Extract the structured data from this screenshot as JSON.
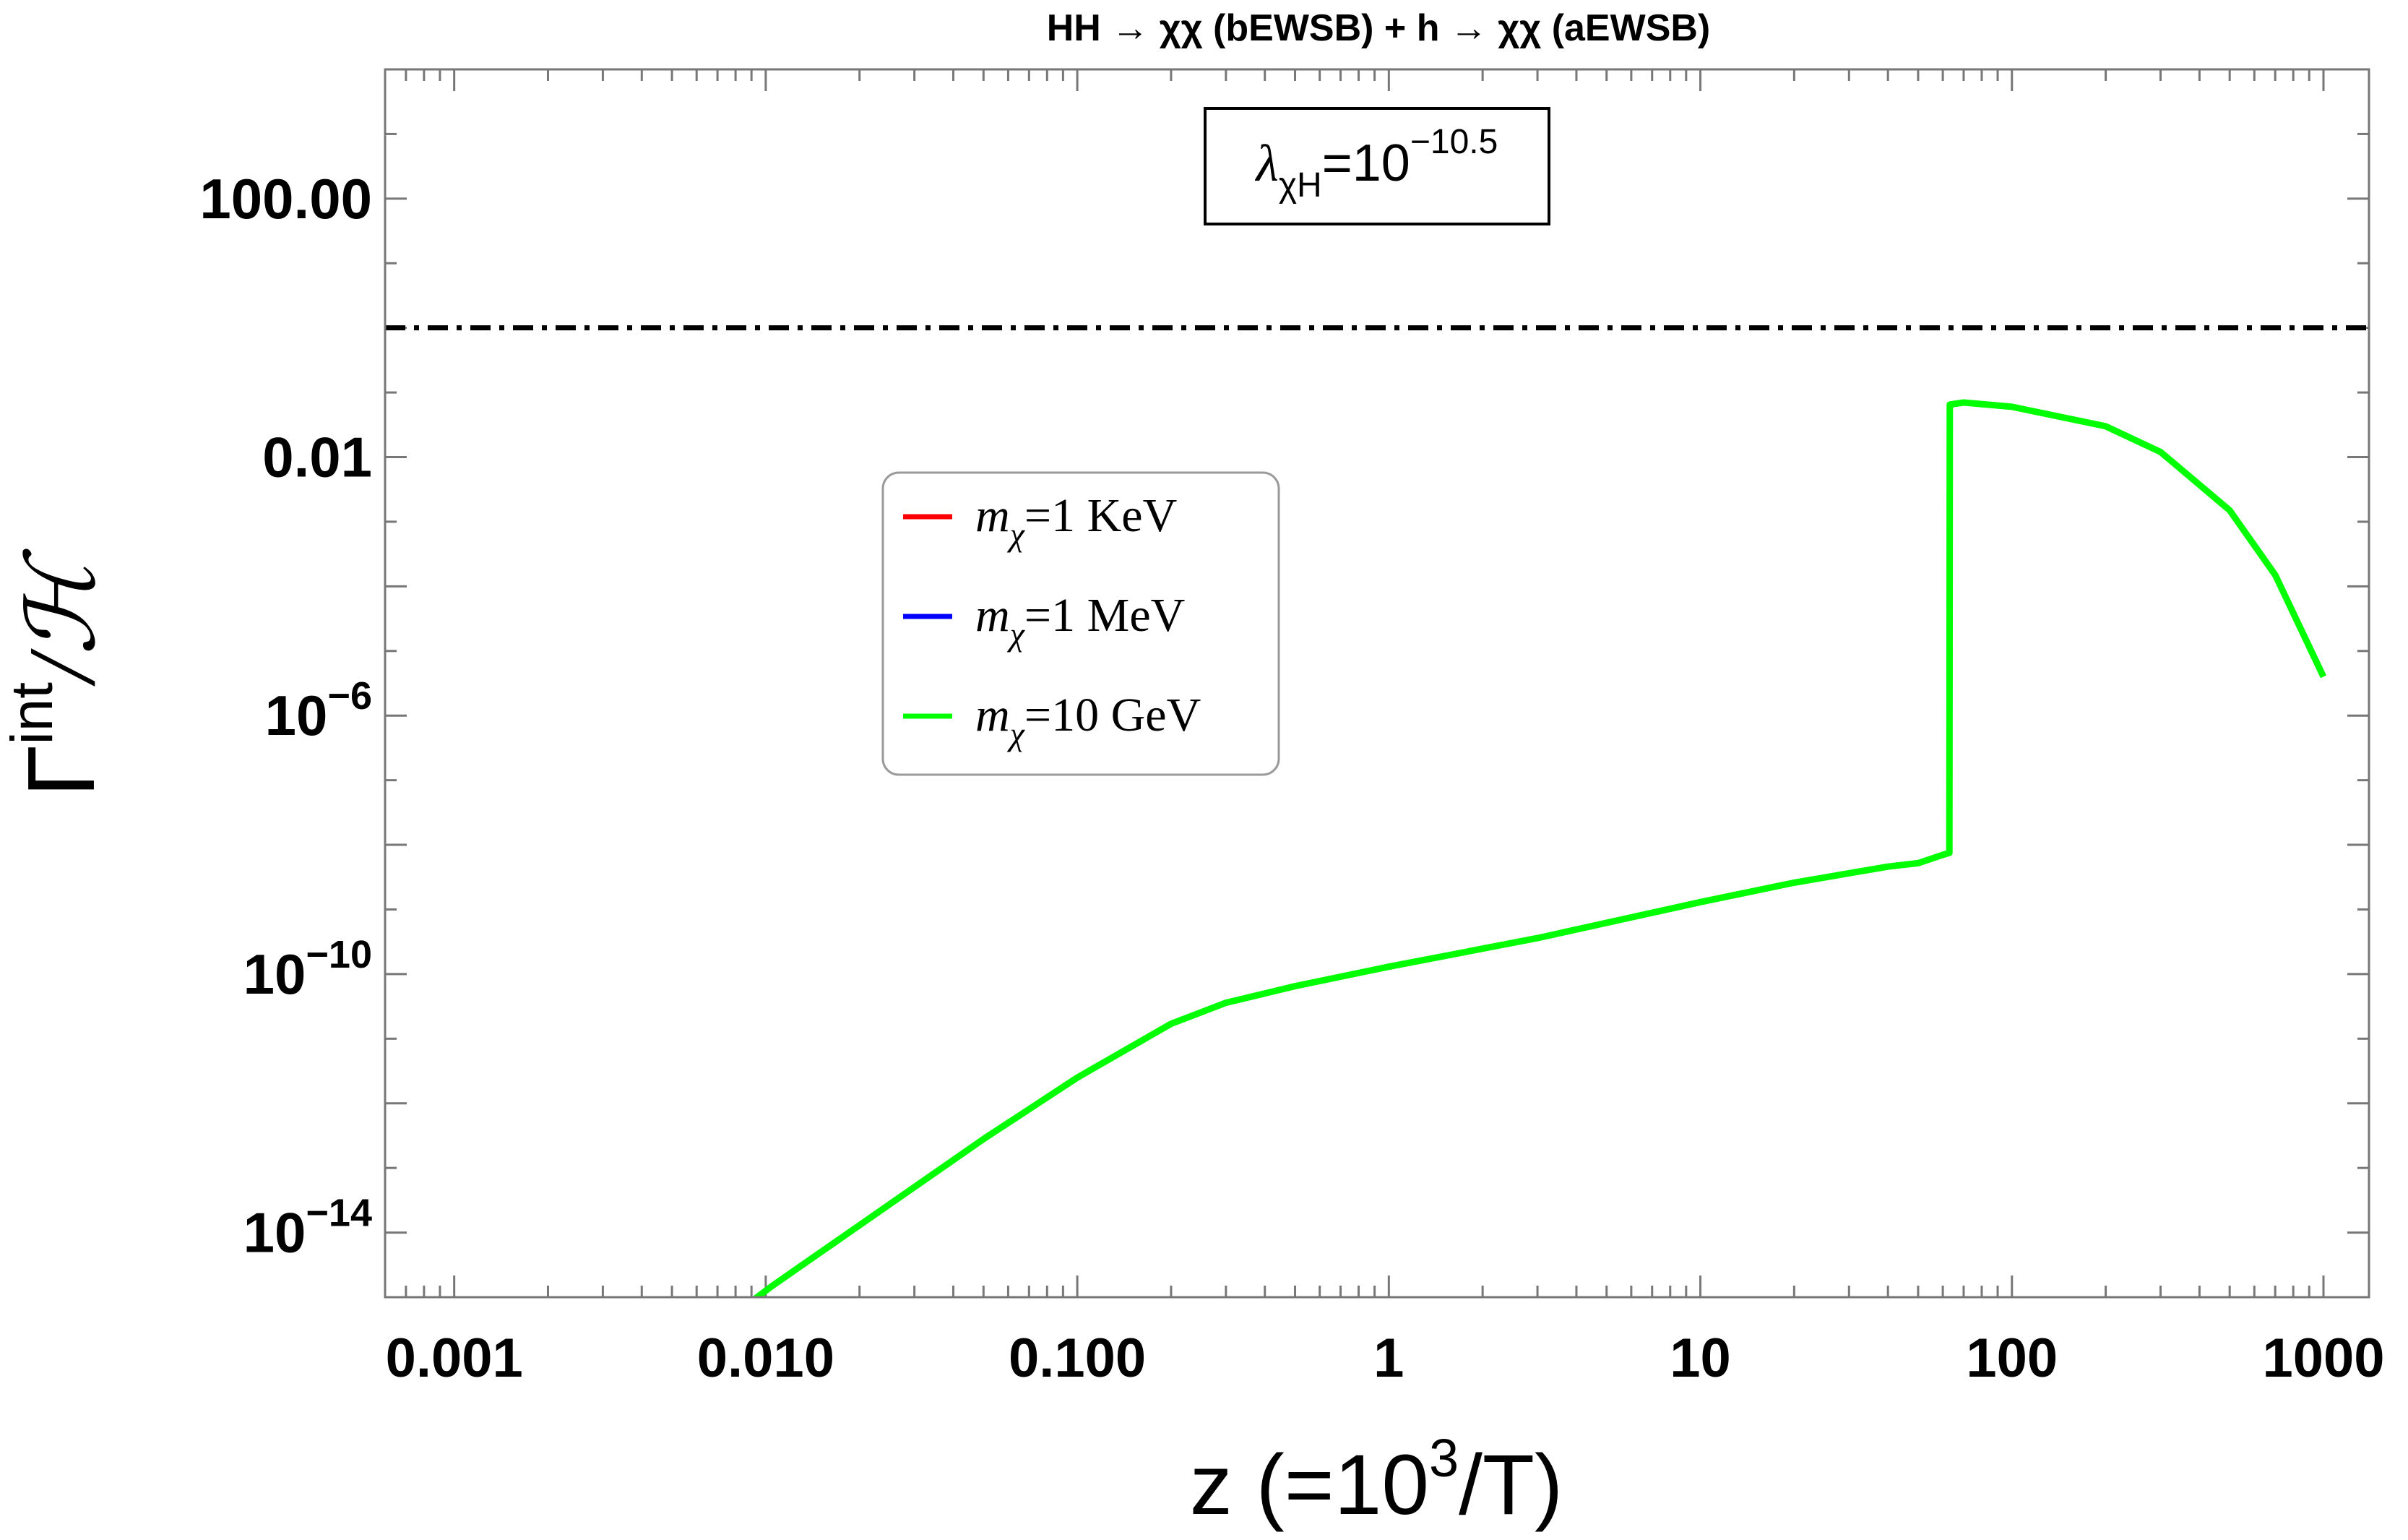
{
  "chart_data": {
    "type": "line",
    "title": "HH → χχ (bEWSB) + h → χχ (aEWSB)",
    "xlabel": "z (=10",
    "xlabel_sup": "3",
    "xlabel_tail": "/T)",
    "ylabel_main": "Γ",
    "ylabel_sup": "int",
    "ylabel_tail": "/ℋ",
    "x_scale": "log",
    "y_scale": "log",
    "xlim": [
      0.0006,
      1400
    ],
    "ylim": [
      1e-15,
      10000
    ],
    "x_ticks": [
      {
        "value": 0.001,
        "label": "0.001"
      },
      {
        "value": 0.01,
        "label": "0.010"
      },
      {
        "value": 0.1,
        "label": "0.100"
      },
      {
        "value": 1,
        "label": "1"
      },
      {
        "value": 10,
        "label": "10"
      },
      {
        "value": 100,
        "label": "100"
      },
      {
        "value": 1000,
        "label": "1000"
      }
    ],
    "y_ticks": [
      {
        "value": 1e-14,
        "base": "10",
        "exp": "−14",
        "text": ""
      },
      {
        "value": 1e-10,
        "base": "10",
        "exp": "−10",
        "text": ""
      },
      {
        "value": 1e-06,
        "base": "10",
        "exp": "−6",
        "text": ""
      },
      {
        "value": 0.01,
        "base": "",
        "exp": "",
        "text": "0.01"
      },
      {
        "value": 100,
        "base": "",
        "exp": "",
        "text": "100.00"
      }
    ],
    "annotation": {
      "lambda": "λ",
      "sub": "χH",
      "eq": "=10",
      "exp": "−10.5"
    },
    "reference_line": {
      "y": 1,
      "style": "dash-dot",
      "color": "#000000"
    },
    "legend": {
      "position": "center-left",
      "entries": [
        {
          "m": "m",
          "sub": "χ",
          "value": "=1 KeV",
          "color": "#ff0000"
        },
        {
          "m": "m",
          "sub": "χ",
          "value": "=1 MeV",
          "color": "#0000ff"
        },
        {
          "m": "m",
          "sub": "χ",
          "value": "=10 GeV",
          "color": "#00ff00"
        }
      ]
    },
    "series": [
      {
        "color": "#00ff00",
        "points": [
          [
            0.0085,
            7e-16
          ],
          [
            0.0105,
            1.5e-15
          ],
          [
            0.02,
            1.3e-14
          ],
          [
            0.05,
            2.8e-13
          ],
          [
            0.1,
            2.5e-12
          ],
          [
            0.2,
            1.7e-11
          ],
          [
            0.3,
            3.6e-11
          ],
          [
            0.5,
            6.5e-11
          ],
          [
            1,
            1.3e-10
          ],
          [
            3,
            3.6e-10
          ],
          [
            10,
            1.3e-09
          ],
          [
            20,
            2.6e-09
          ],
          [
            40,
            4.6e-09
          ],
          [
            50,
            5.2e-09
          ],
          [
            60,
            7e-09
          ],
          [
            63,
            7.5e-09
          ],
          [
            63.2,
            0.065
          ],
          [
            70,
            0.07
          ],
          [
            100,
            0.06
          ],
          [
            200,
            0.03
          ],
          [
            300,
            0.012
          ],
          [
            500,
            0.0015
          ],
          [
            700,
            0.00015
          ],
          [
            1000,
            4e-06
          ]
        ]
      }
    ]
  }
}
